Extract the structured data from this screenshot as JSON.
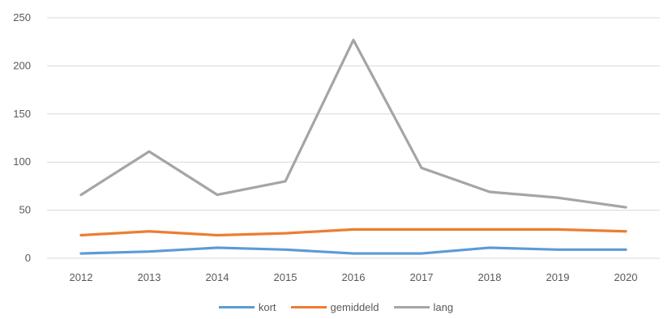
{
  "chart_data": {
    "type": "line",
    "title": "",
    "xlabel": "",
    "ylabel": "",
    "categories": [
      "2012",
      "2013",
      "2014",
      "2015",
      "2016",
      "2017",
      "2018",
      "2019",
      "2020"
    ],
    "ylim": [
      0,
      250
    ],
    "yticks": [
      0,
      50,
      100,
      150,
      200,
      250
    ],
    "grid": true,
    "legend_position": "bottom",
    "series": [
      {
        "name": "kort",
        "color": "#5b9bd5",
        "values": [
          5,
          7,
          11,
          9,
          5,
          5,
          11,
          9,
          9
        ]
      },
      {
        "name": "gemiddeld",
        "color": "#ed7d31",
        "values": [
          24,
          28,
          24,
          26,
          30,
          30,
          30,
          30,
          28
        ]
      },
      {
        "name": "lang",
        "color": "#a5a5a5",
        "values": [
          66,
          111,
          66,
          80,
          227,
          94,
          69,
          63,
          53
        ]
      }
    ]
  }
}
